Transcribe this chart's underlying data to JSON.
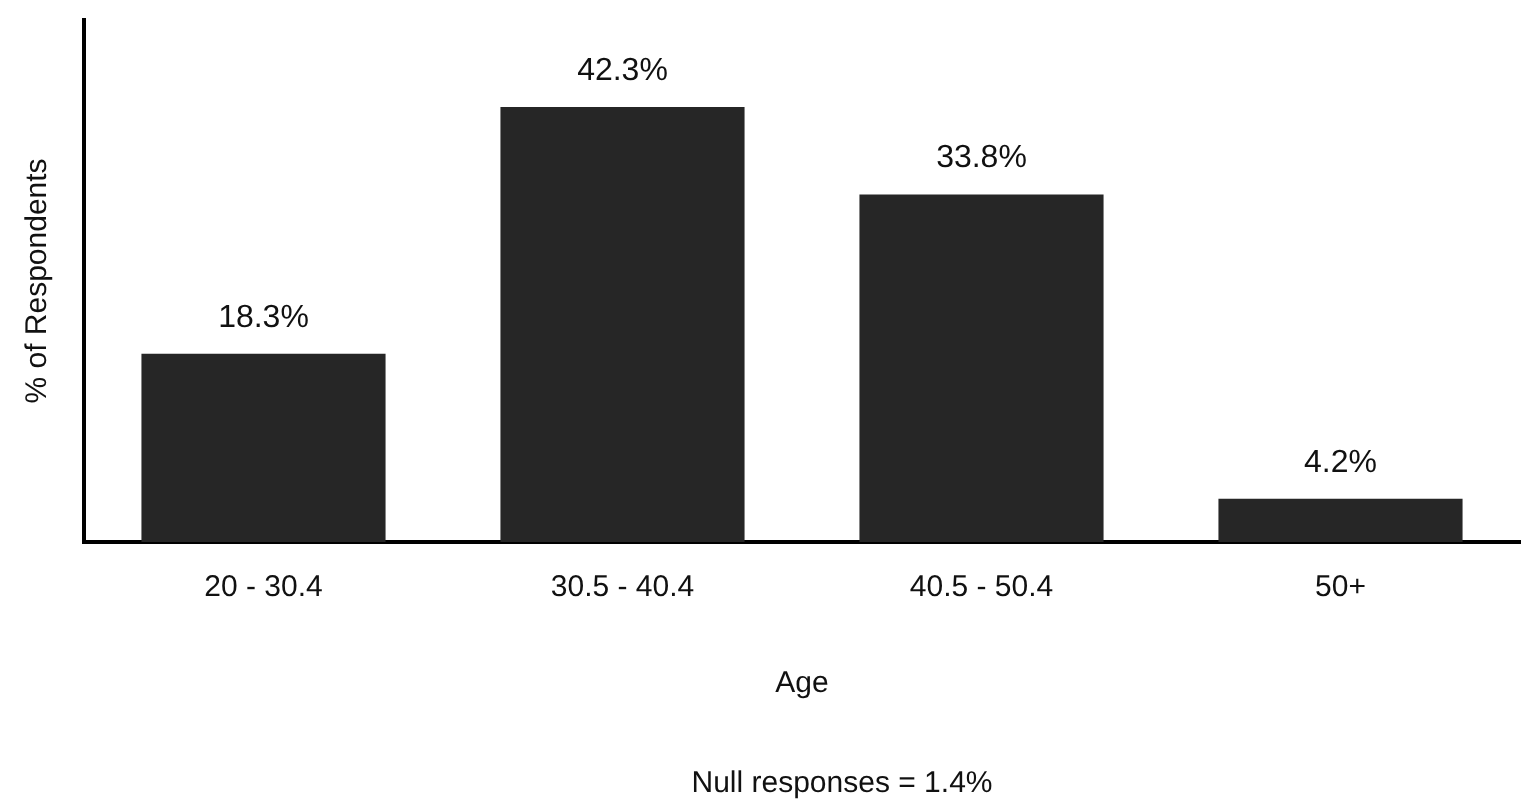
{
  "chart_data": {
    "type": "bar",
    "xlabel": "Age",
    "ylabel": "% of Respondents",
    "categories": [
      "20 - 30.4",
      "30.5 - 40.4",
      "40.5 - 50.4",
      "50+"
    ],
    "values": [
      18.3,
      42.3,
      33.8,
      4.2
    ],
    "color": "#262626",
    "value_labels": [
      "18.3%",
      "42.3%",
      "33.8%",
      "4.2%"
    ],
    "grid": false,
    "legend": false,
    "annotations": [
      "Null responses = 1.4%"
    ]
  }
}
